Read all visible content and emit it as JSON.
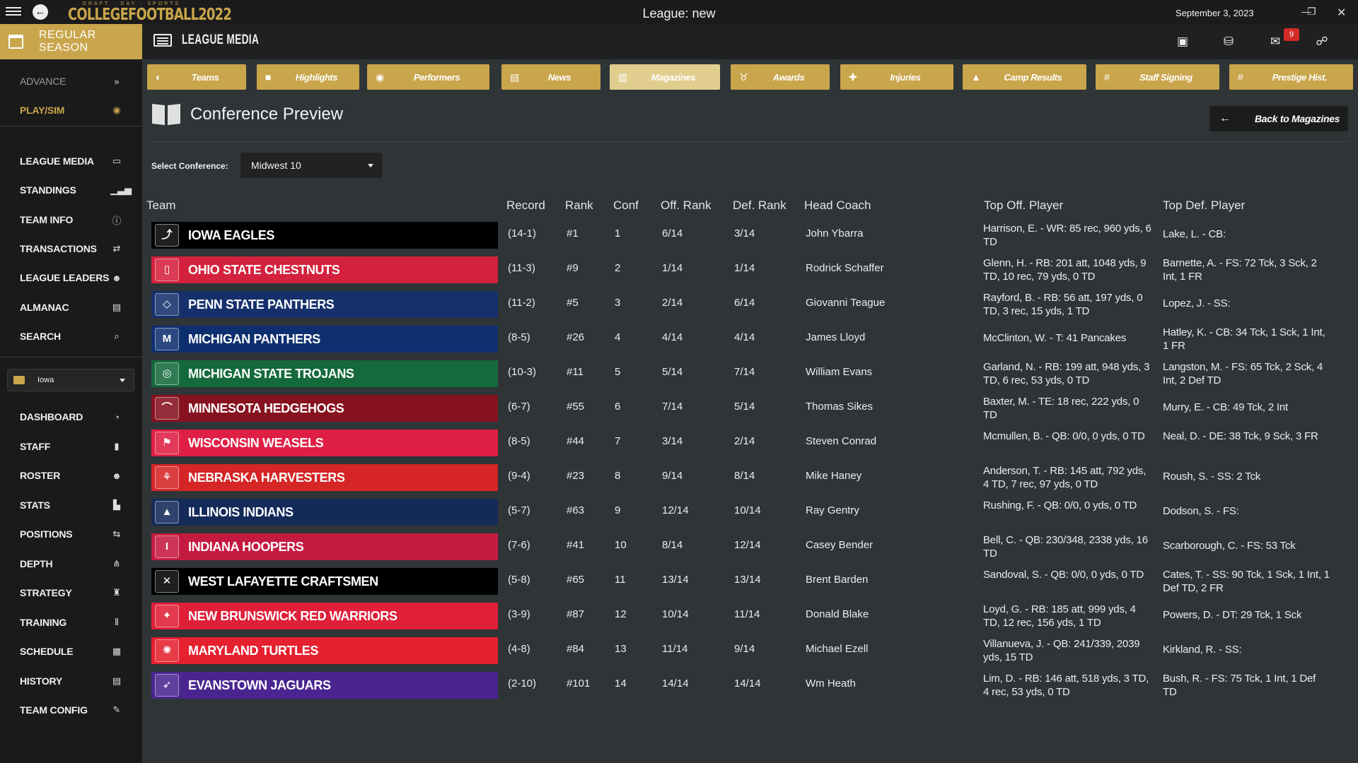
{
  "window": {
    "logo_top": "DRAFT · DAY · SPORTS",
    "logo_main": "COLLEGEFOOTBALL2022",
    "title": "League: new",
    "date": "September 3, 2023",
    "mail_count": "9"
  },
  "header": {
    "season": "REGULAR SEASON",
    "section": "LEAGUE MEDIA"
  },
  "sidebar": {
    "top": [
      {
        "label": "ADVANCE",
        "icon": "»"
      },
      {
        "label": "PLAY/SIM",
        "icon": "◉"
      }
    ],
    "league": [
      {
        "label": "LEAGUE MEDIA",
        "icon": "▭"
      },
      {
        "label": "STANDINGS",
        "icon": "▁▃▅"
      },
      {
        "label": "TEAM INFO",
        "icon": "ⓘ"
      },
      {
        "label": "TRANSACTIONS",
        "icon": "⇄"
      },
      {
        "label": "LEAGUE LEADERS",
        "icon": "☻"
      },
      {
        "label": "ALMANAC",
        "icon": "▤"
      },
      {
        "label": "SEARCH",
        "icon": "⌕"
      }
    ],
    "team_select": "Iowa",
    "team": [
      {
        "label": "DASHBOARD",
        "icon": "◔"
      },
      {
        "label": "STAFF",
        "icon": "▮"
      },
      {
        "label": "ROSTER",
        "icon": "☻"
      },
      {
        "label": "STATS",
        "icon": "▙"
      },
      {
        "label": "POSITIONS",
        "icon": "⇆"
      },
      {
        "label": "DEPTH",
        "icon": "⋔"
      },
      {
        "label": "STRATEGY",
        "icon": "♜"
      },
      {
        "label": "TRAINING",
        "icon": "⫴"
      },
      {
        "label": "SCHEDULE",
        "icon": "▦"
      },
      {
        "label": "HISTORY",
        "icon": "▤"
      },
      {
        "label": "TEAM CONFIG",
        "icon": "✎"
      }
    ]
  },
  "nav": [
    {
      "label": "Teams",
      "icon": "◐"
    },
    {
      "label": "Highlights",
      "icon": "■"
    },
    {
      "label": "Performers",
      "icon": "◉"
    },
    {
      "label": "News",
      "icon": "▤"
    },
    {
      "label": "Magazines",
      "icon": "▥"
    },
    {
      "label": "Awards",
      "icon": "♉"
    },
    {
      "label": "Injuries",
      "icon": "✚"
    },
    {
      "label": "Camp Results",
      "icon": "▲"
    },
    {
      "label": "Staff Signing",
      "icon": "#"
    },
    {
      "label": "Prestige Hist.",
      "icon": "#"
    }
  ],
  "page": {
    "title": "Conference Preview",
    "back_label": "Back to Magazines",
    "select_label": "Select Conference:",
    "select_value": "Midwest 10"
  },
  "table": {
    "headers": [
      "Team",
      "Record",
      "Rank",
      "Conf",
      "Off. Rank",
      "Def. Rank",
      "Head Coach",
      "Top Off. Player",
      "Top Def. Player"
    ],
    "rows": [
      {
        "team": "IOWA EAGLES",
        "color": "#000000",
        "logo": "⤴",
        "record": "(14-1)",
        "rank": "#1",
        "conf": "1",
        "off": "6/14",
        "def": "3/14",
        "coach": "John Ybarra",
        "top_off": "Harrison, E. - WR: 85 rec, 960 yds, 6 TD",
        "top_def": "Lake, L. - CB:"
      },
      {
        "team": "OHIO STATE CHESTNUTS",
        "color": "#d4213d",
        "logo": "▯",
        "record": "(11-3)",
        "rank": "#9",
        "conf": "2",
        "off": "1/14",
        "def": "1/14",
        "coach": "Rodrick Schaffer",
        "top_off": "Glenn, H. - RB: 201 att, 1048 yds, 9 TD, 10 rec, 79 yds, 0 TD",
        "top_def": "Barnette, A. - FS: 72 Tck, 3 Sck, 2 Int, 1 FR"
      },
      {
        "team": "PENN STATE PANTHERS",
        "color": "#15306b",
        "logo": "◇",
        "record": "(11-2)",
        "rank": "#5",
        "conf": "3",
        "off": "2/14",
        "def": "6/14",
        "coach": "Giovanni Teague",
        "top_off": "Rayford, B. - RB: 56 att, 197 yds, 0 TD, 3 rec, 15 yds, 1 TD",
        "top_def": "Lopez, J. - SS:"
      },
      {
        "team": "MICHIGAN PANTHERS",
        "color": "#0e2f6f",
        "logo": "M",
        "record": "(8-5)",
        "rank": "#26",
        "conf": "4",
        "off": "4/14",
        "def": "4/14",
        "coach": "James Lloyd",
        "top_off": "McClinton, W. - T: 41 Pancakes",
        "top_def": "Hatley, K. - CB: 34 Tck, 1 Sck, 1 Int, 1 FR"
      },
      {
        "team": "MICHIGAN STATE TROJANS",
        "color": "#156a3d",
        "logo": "◎",
        "record": "(10-3)",
        "rank": "#11",
        "conf": "5",
        "off": "5/14",
        "def": "7/14",
        "coach": "William Evans",
        "top_off": "Garland, N. - RB: 199 att, 948 yds, 3 TD, 6 rec, 53 yds, 0 TD",
        "top_def": "Langston, M. - FS: 65 Tck, 2 Sck, 4 Int, 2 Def TD"
      },
      {
        "team": "MINNESOTA HEDGEHOGS",
        "color": "#87121f",
        "logo": "⌒",
        "record": "(6-7)",
        "rank": "#55",
        "conf": "6",
        "off": "7/14",
        "def": "5/14",
        "coach": "Thomas Sikes",
        "top_off": "Baxter, M. - TE: 18 rec, 222 yds, 0 TD",
        "top_def": "Murry, E. - CB: 49 Tck, 2 Int"
      },
      {
        "team": "WISCONSIN WEASELS",
        "color": "#df1f45",
        "logo": "⚑",
        "record": "(8-5)",
        "rank": "#44",
        "conf": "7",
        "off": "3/14",
        "def": "2/14",
        "coach": "Steven Conrad",
        "top_off": "Mcmullen, B. - QB: 0/0, 0 yds, 0 TD",
        "top_def": "Neal, D. - DE: 38 Tck, 9 Sck, 3 FR"
      },
      {
        "team": "NEBRASKA HARVESTERS",
        "color": "#d52525",
        "logo": "⚘",
        "record": "(9-4)",
        "rank": "#23",
        "conf": "8",
        "off": "9/14",
        "def": "8/14",
        "coach": "Mike Haney",
        "top_off": "Anderson, T. - RB: 145 att, 792 yds, 4 TD, 7 rec, 97 yds, 0 TD",
        "top_def": "Roush, S. - SS: 2 Tck"
      },
      {
        "team": "ILLINOIS INDIANS",
        "color": "#142a59",
        "logo": "▲",
        "record": "(5-7)",
        "rank": "#63",
        "conf": "9",
        "off": "12/14",
        "def": "10/14",
        "coach": "Ray Gentry",
        "top_off": "Rushing, F. - QB: 0/0, 0 yds, 0 TD",
        "top_def": "Dodson, S. - FS:"
      },
      {
        "team": "INDIANA HOOPERS",
        "color": "#c51a40",
        "logo": "I",
        "record": "(7-6)",
        "rank": "#41",
        "conf": "10",
        "off": "8/14",
        "def": "12/14",
        "coach": "Casey Bender",
        "top_off": "Bell, C. - QB: 230/348, 2338 yds, 16 TD",
        "top_def": "Scarborough, C. - FS: 53 Tck"
      },
      {
        "team": "WEST LAFAYETTE CRAFTSMEN",
        "color": "#000000",
        "logo": "✕",
        "record": "(5-8)",
        "rank": "#65",
        "conf": "11",
        "off": "13/14",
        "def": "13/14",
        "coach": "Brent Barden",
        "top_off": "Sandoval, S. - QB: 0/0, 0 yds, 0 TD",
        "top_def": "Cates, T. - SS: 90 Tck, 1 Sck, 1 Int, 1 Def TD, 2 FR"
      },
      {
        "team": "NEW BRUNSWICK RED WARRIORS",
        "color": "#e01f38",
        "logo": "✦",
        "record": "(3-9)",
        "rank": "#87",
        "conf": "12",
        "off": "10/14",
        "def": "11/14",
        "coach": "Donald Blake",
        "top_off": "Loyd, G. - RB: 185 att, 999 yds, 4 TD, 12 rec, 156 yds, 1 TD",
        "top_def": "Powers, D. - DT: 29 Tck, 1 Sck"
      },
      {
        "team": "MARYLAND TURTLES",
        "color": "#e5202f",
        "logo": "✺",
        "record": "(4-8)",
        "rank": "#84",
        "conf": "13",
        "off": "11/14",
        "def": "9/14",
        "coach": "Michael Ezell",
        "top_off": "Villanueva, J. - QB: 241/339, 2039 yds, 15 TD",
        "top_def": "Kirkland, R. - SS:"
      },
      {
        "team": "EVANSTOWN JAGUARS",
        "color": "#4a2590",
        "logo": "➶",
        "record": "(2-10)",
        "rank": "#101",
        "conf": "14",
        "off": "14/14",
        "def": "14/14",
        "coach": "Wm Heath",
        "top_off": "Lim, D. - RB: 146 att, 518 yds, 3 TD, 4 rec, 53 yds, 0 TD",
        "top_def": "Bush, R. - FS: 75 Tck, 1 Int, 1 Def TD"
      }
    ]
  }
}
